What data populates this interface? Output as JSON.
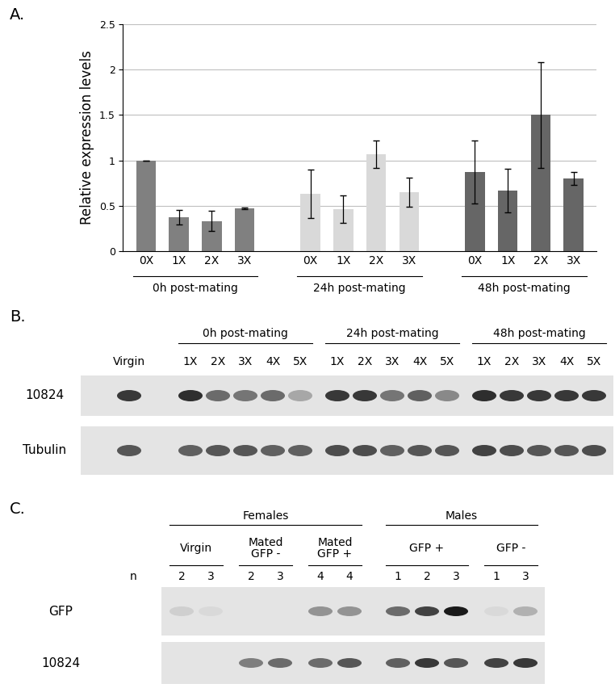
{
  "chart_data": {
    "type": "bar",
    "annotations": [
      "A."
    ],
    "ylabel": "Relative expression levels",
    "ylim": [
      0,
      2.5
    ],
    "yticks": [
      0,
      0.5,
      1,
      1.5,
      2,
      2.5
    ],
    "grid": true,
    "groups": [
      {
        "label": "0h post-mating",
        "color": "#808080",
        "categories": [
          "0X",
          "1X",
          "2X",
          "3X"
        ],
        "values": [
          1.0,
          0.37,
          0.33,
          0.47
        ],
        "errors": [
          0,
          0.08,
          0.11,
          0.01
        ]
      },
      {
        "label": "24h post-mating",
        "color": "#d9d9d9",
        "categories": [
          "0X",
          "1X",
          "2X",
          "3X"
        ],
        "values": [
          0.63,
          0.46,
          1.07,
          0.65
        ],
        "errors": [
          0.27,
          0.15,
          0.15,
          0.16
        ]
      },
      {
        "label": "48h post-mating",
        "color": "#666666",
        "categories": [
          "0X",
          "1X",
          "2X",
          "3X"
        ],
        "values": [
          0.87,
          0.67,
          1.5,
          0.8
        ],
        "errors": [
          0.35,
          0.24,
          0.58,
          0.07
        ]
      }
    ]
  },
  "blots": [
    {
      "panel": "B.",
      "groups": [
        {
          "label": null,
          "lanes": [
            "Virgin"
          ]
        },
        {
          "label": "0h post-mating",
          "lanes": [
            "1X",
            "2X",
            "3X",
            "4X",
            "5X"
          ]
        },
        {
          "label": "24h post-mating",
          "lanes": [
            "1X",
            "2X",
            "3X",
            "4X",
            "5X"
          ]
        },
        {
          "label": "48h post-mating",
          "lanes": [
            "1X",
            "2X",
            "3X",
            "4X",
            "5X"
          ]
        }
      ],
      "rows": [
        {
          "label": "10824",
          "intensity": [
            0.85,
            0.9,
            0.6,
            0.55,
            0.6,
            0.3,
            0.85,
            0.85,
            0.55,
            0.65,
            0.45,
            0.9,
            0.85,
            0.85,
            0.85,
            0.85
          ]
        },
        {
          "label": "Tubulin",
          "intensity": [
            0.7,
            0.65,
            0.7,
            0.7,
            0.65,
            0.65,
            0.75,
            0.75,
            0.65,
            0.7,
            0.7,
            0.8,
            0.75,
            0.7,
            0.7,
            0.75
          ]
        }
      ]
    },
    {
      "panel": "C.",
      "n_label": "n",
      "groups": [
        {
          "label": "Females",
          "subgroups": [
            {
              "label": "Virgin",
              "n": [
                2,
                3
              ]
            },
            {
              "label": "Mated\nGFP -",
              "n": [
                2,
                3
              ]
            },
            {
              "label": "Mated\nGFP +",
              "n": [
                4,
                4
              ]
            }
          ]
        },
        {
          "label": "Males",
          "subgroups": [
            {
              "label": "GFP +",
              "n": [
                1,
                2,
                3
              ]
            },
            {
              "label": "GFP -",
              "n": [
                1,
                3
              ]
            }
          ]
        }
      ],
      "rows": [
        {
          "label": "GFP",
          "intensity": [
            0.1,
            0.05,
            0.0,
            0.0,
            0.4,
            0.4,
            0.6,
            0.8,
            1.0,
            0.05,
            0.25
          ]
        },
        {
          "label": "10824",
          "intensity": [
            0.0,
            0.0,
            0.5,
            0.6,
            0.6,
            0.7,
            0.65,
            0.85,
            0.7,
            0.8,
            0.85
          ]
        }
      ]
    }
  ]
}
